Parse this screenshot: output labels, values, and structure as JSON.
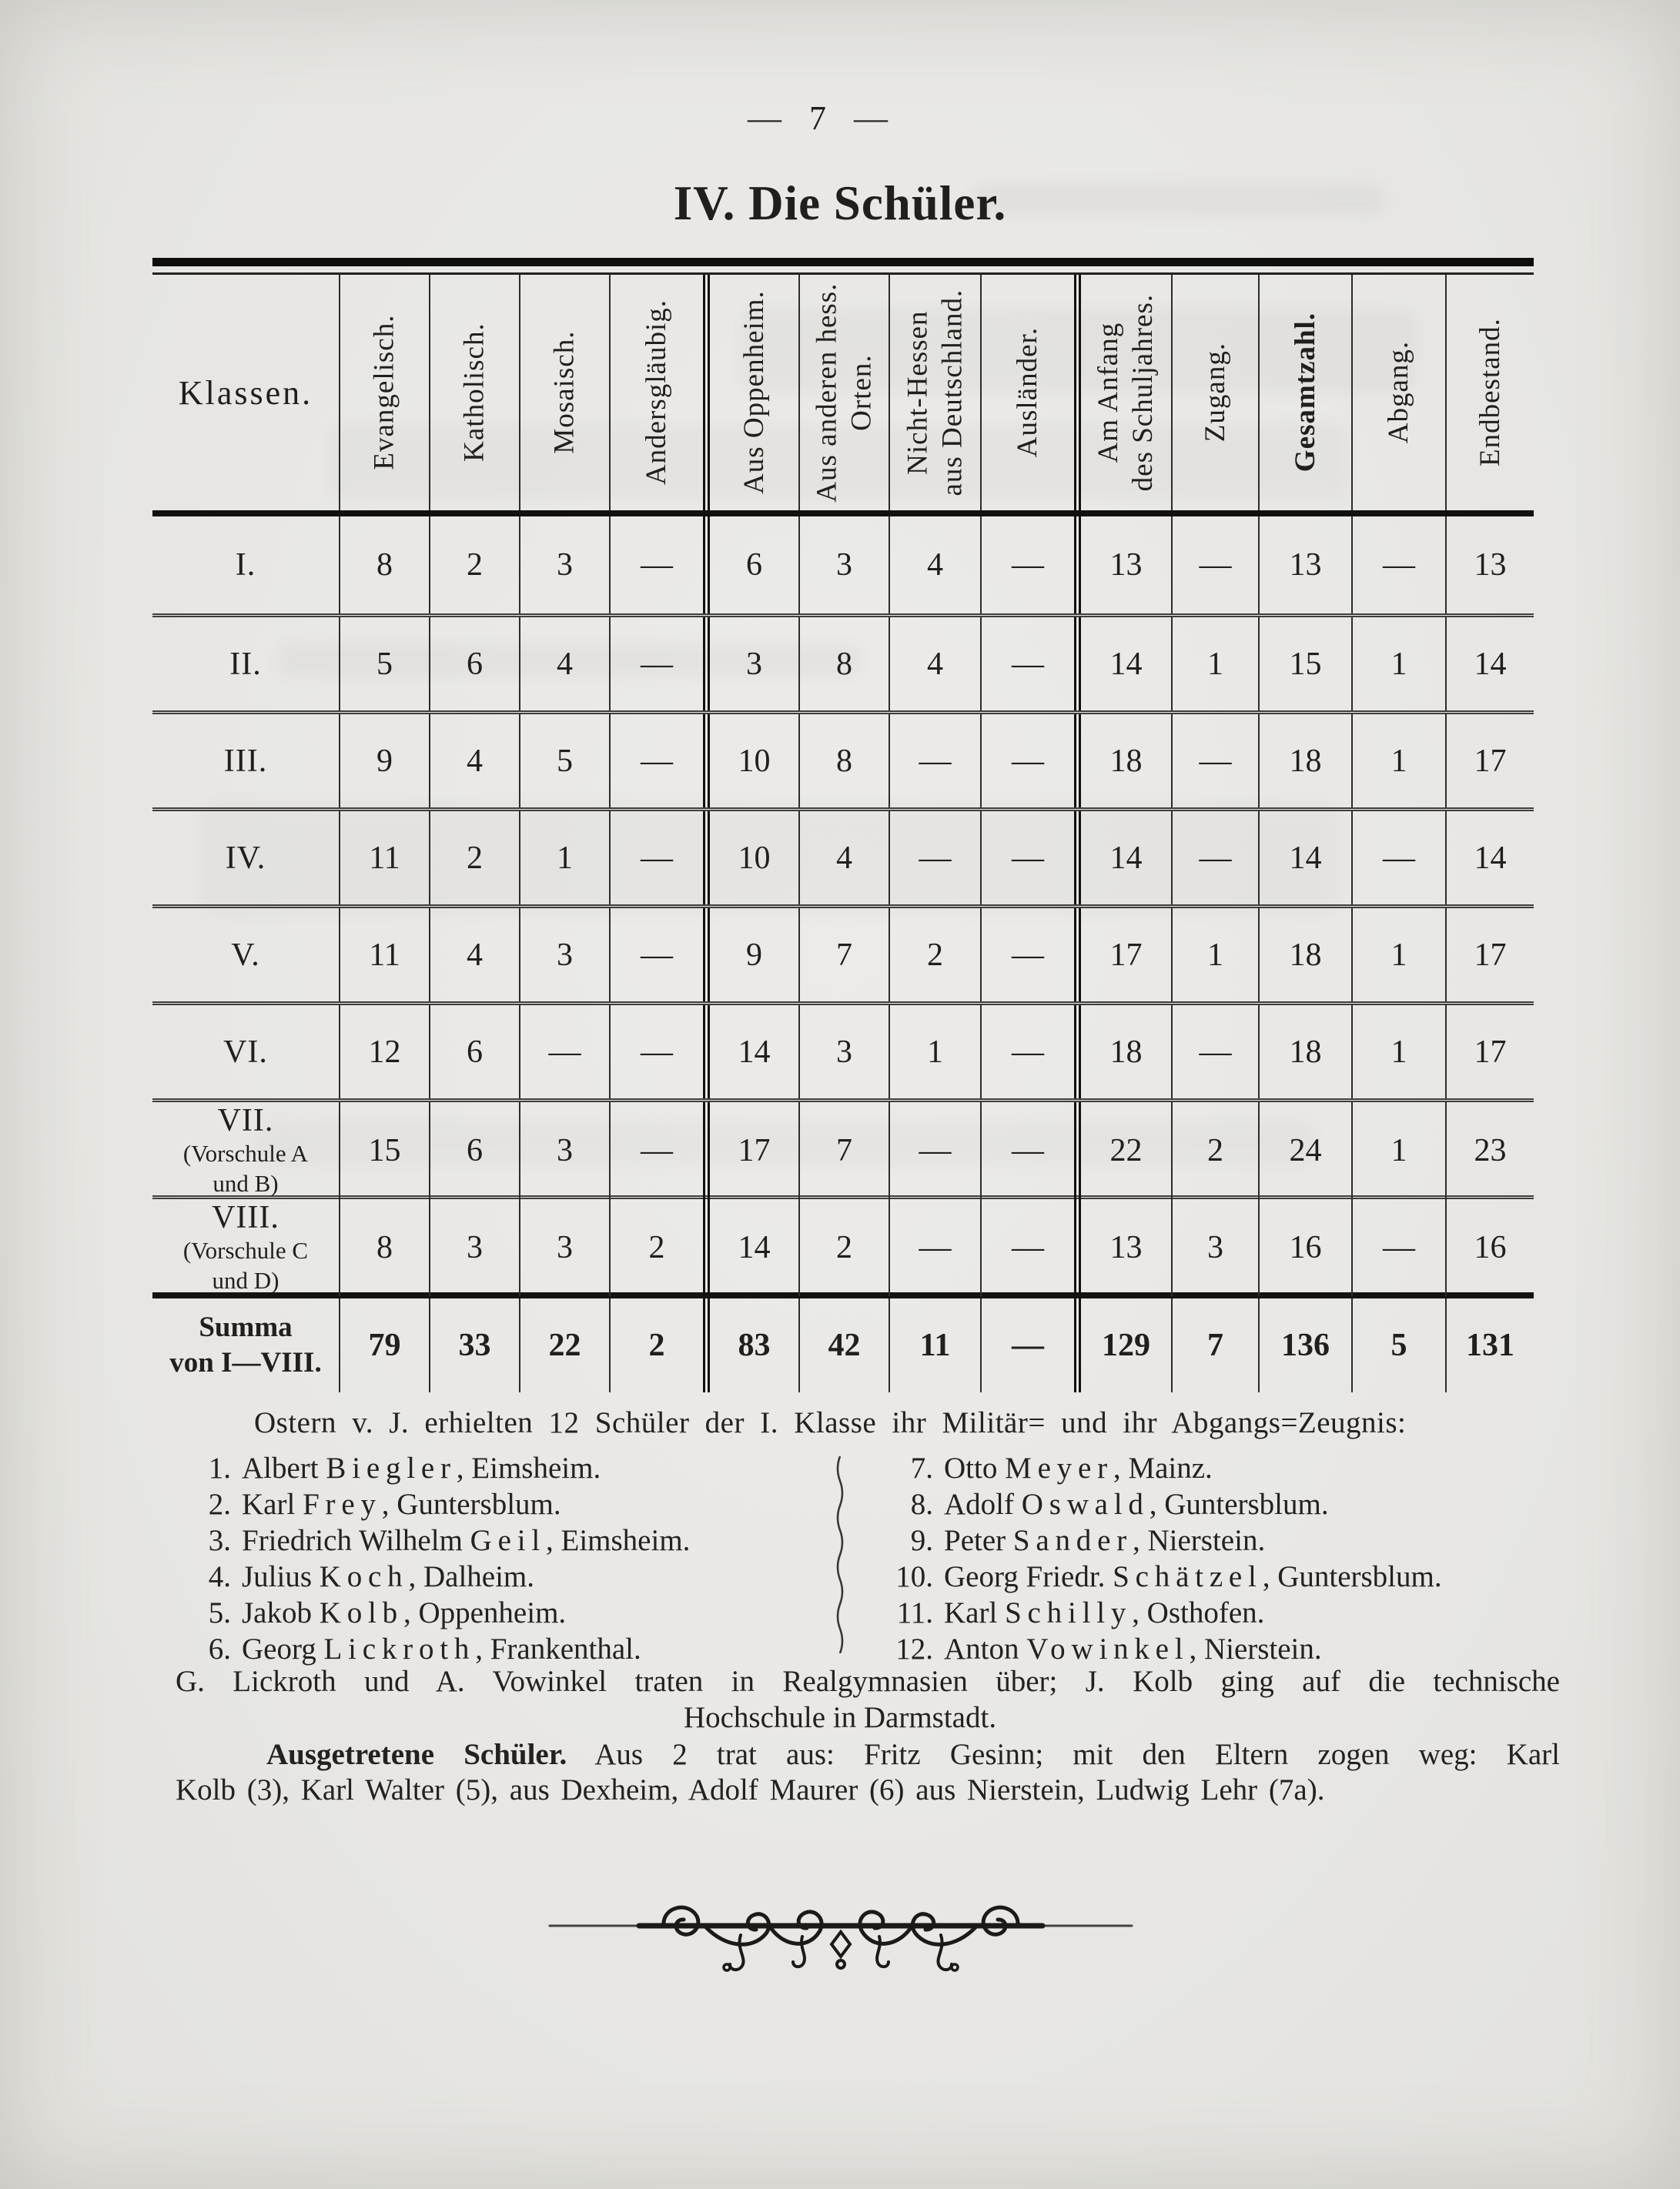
{
  "page": {
    "dash": "—",
    "number": "7",
    "title": "IV. Die Schüler."
  },
  "table": {
    "columns": [
      {
        "lines": [
          "Klassen."
        ],
        "rotated": false
      },
      {
        "lines": [
          "Evangelisch."
        ]
      },
      {
        "lines": [
          "Katholisch."
        ]
      },
      {
        "lines": [
          "Mosaisch."
        ]
      },
      {
        "lines": [
          "Andersgläubig."
        ]
      },
      {
        "lines": [
          "Aus Oppenheim."
        ],
        "group_start": true
      },
      {
        "lines": [
          "Aus anderen hess.",
          "Orten."
        ]
      },
      {
        "lines": [
          "Nicht-Hessen",
          "aus Deutschland."
        ]
      },
      {
        "lines": [
          "Ausländer."
        ]
      },
      {
        "lines": [
          "Am Anfang",
          "des Schuljahres."
        ],
        "group_start": true
      },
      {
        "lines": [
          "Zugang."
        ]
      },
      {
        "lines": [
          "Gesamtzahl."
        ],
        "bold": true
      },
      {
        "lines": [
          "Abgang."
        ]
      },
      {
        "lines": [
          "Endbestand."
        ]
      }
    ],
    "rows": [
      {
        "label_lines": [
          "I."
        ],
        "values": [
          "8",
          "2",
          "3",
          "—",
          "6",
          "3",
          "4",
          "—",
          "13",
          "—",
          "13",
          "—",
          "13"
        ]
      },
      {
        "label_lines": [
          "II."
        ],
        "values": [
          "5",
          "6",
          "4",
          "—",
          "3",
          "8",
          "4",
          "—",
          "14",
          "1",
          "15",
          "1",
          "14"
        ]
      },
      {
        "label_lines": [
          "III."
        ],
        "values": [
          "9",
          "4",
          "5",
          "—",
          "10",
          "8",
          "—",
          "—",
          "18",
          "—",
          "18",
          "1",
          "17"
        ]
      },
      {
        "label_lines": [
          "IV."
        ],
        "values": [
          "11",
          "2",
          "1",
          "—",
          "10",
          "4",
          "—",
          "—",
          "14",
          "—",
          "14",
          "—",
          "14"
        ]
      },
      {
        "label_lines": [
          "V."
        ],
        "values": [
          "11",
          "4",
          "3",
          "—",
          "9",
          "7",
          "2",
          "—",
          "17",
          "1",
          "18",
          "1",
          "17"
        ]
      },
      {
        "label_lines": [
          "VI."
        ],
        "values": [
          "12",
          "6",
          "—",
          "—",
          "14",
          "3",
          "1",
          "—",
          "18",
          "—",
          "18",
          "1",
          "17"
        ]
      },
      {
        "label_lines": [
          "VII.",
          "(Vorschule A",
          "und B)"
        ],
        "values": [
          "15",
          "6",
          "3",
          "—",
          "17",
          "7",
          "—",
          "—",
          "22",
          "2",
          "24",
          "1",
          "23"
        ]
      },
      {
        "label_lines": [
          "VIII.",
          "(Vorschule C",
          "und D)"
        ],
        "values": [
          "8",
          "3",
          "3",
          "2",
          "14",
          "2",
          "—",
          "—",
          "13",
          "3",
          "16",
          "—",
          "16"
        ]
      },
      {
        "label_lines": [
          "Summa",
          "von I—VIII."
        ],
        "is_sum": true,
        "values": [
          "79",
          "33",
          "22",
          "2",
          "83",
          "42",
          "11",
          "—",
          "129",
          "7",
          "136",
          "5",
          "131"
        ]
      }
    ]
  },
  "intro": "Ostern v. J. erhielten 12 Schüler der I. Klasse ihr Militär= und ihr Abgangs=Zeugnis:",
  "graduates": [
    {
      "no": "1.",
      "first": "Albert",
      "last": "Biegler",
      "place": "Eimsheim.",
      "col": "left"
    },
    {
      "no": "2.",
      "first": "Karl",
      "last": "Frey",
      "place": "Guntersblum.",
      "col": "left"
    },
    {
      "no": "3.",
      "first": "Friedrich Wilhelm",
      "last": "Geil",
      "place": "Eimsheim.",
      "col": "left"
    },
    {
      "no": "4.",
      "first": "Julius",
      "last": "Koch",
      "place": "Dalheim.",
      "col": "left"
    },
    {
      "no": "5.",
      "first": "Jakob",
      "last": "Kolb",
      "place": "Oppenheim.",
      "col": "left"
    },
    {
      "no": "6.",
      "first": "Georg",
      "last": "Lickroth",
      "place": "Frankenthal.",
      "col": "left"
    },
    {
      "no": "7.",
      "first": "Otto",
      "last": "Meyer",
      "place": "Mainz.",
      "col": "right"
    },
    {
      "no": "8.",
      "first": "Adolf",
      "last": "Oswald",
      "place": "Guntersblum.",
      "col": "right"
    },
    {
      "no": "9.",
      "first": "Peter",
      "last": "Sander",
      "place": "Nierstein.",
      "col": "right"
    },
    {
      "no": "10.",
      "first": "Georg Friedr.",
      "last": "Schätzel",
      "place": "Guntersblum.",
      "col": "right"
    },
    {
      "no": "11.",
      "first": "Karl",
      "last": "Schilly",
      "place": "Osthofen.",
      "col": "right"
    },
    {
      "no": "12.",
      "first": "Anton",
      "last": "Vowinkel",
      "place": "Nierstein.",
      "col": "right"
    }
  ],
  "transfer_note": {
    "line1": "G. Lickroth und A. Vowinkel traten in Realgymnasien über; J. Kolb ging auf die technische",
    "line2": "Hochschule in Darmstadt."
  },
  "withdrawn": {
    "lead": "Ausgetretene Schüler.",
    "line1_rest": "Aus 2 trat aus: Fritz Gesinn; mit den Eltern zogen weg: Karl",
    "line2": "Kolb (3), Karl Walter (5), aus Dexheim, Adolf Maurer (6) aus Nierstein, Ludwig Lehr (7a)."
  },
  "colors": {
    "paper": "#e8e7e4",
    "ink": "#211f1c",
    "rule": "#0f0e0d"
  }
}
